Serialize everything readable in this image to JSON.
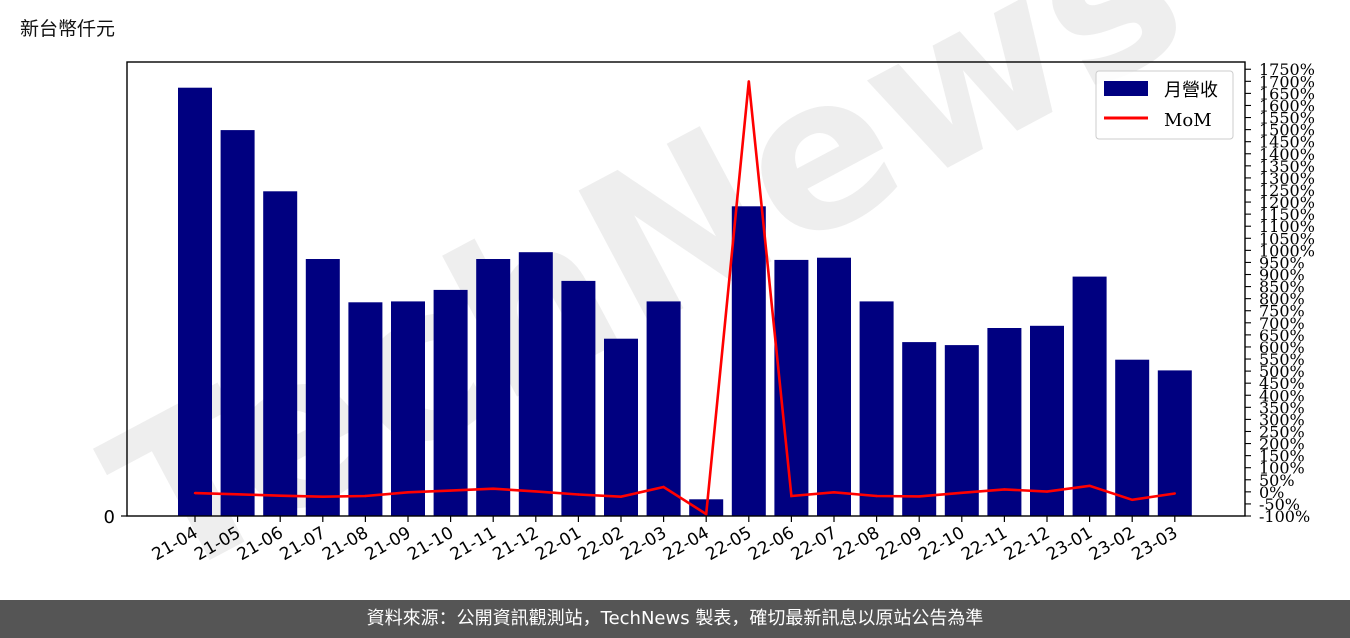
{
  "unit_label": "新台幣仟元",
  "footer_text": "資料來源：公開資訊觀測站，TechNews 製表，確切最新訊息以原站公告為準",
  "watermark_text": "TechNews",
  "chart_data": {
    "type": "bar",
    "categories": [
      "21-04",
      "21-05",
      "21-06",
      "21-07",
      "21-08",
      "21-09",
      "21-10",
      "21-11",
      "21-12",
      "22-01",
      "22-02",
      "22-03",
      "22-04",
      "22-05",
      "22-06",
      "22-07",
      "22-08",
      "22-09",
      "22-10",
      "22-11",
      "22-12",
      "23-01",
      "23-02",
      "23-03"
    ],
    "series": [
      {
        "name": "月營收",
        "kind": "bar",
        "axis": "left",
        "color": "#000080",
        "values": [
          100,
          90.1,
          75.8,
          60.0,
          49.9,
          50.1,
          52.8,
          60.0,
          61.6,
          54.9,
          41.4,
          50.1,
          3.9,
          72.3,
          59.8,
          60.3,
          50.1,
          40.6,
          39.9,
          43.9,
          44.4,
          55.9,
          36.5,
          34.0
        ]
      },
      {
        "name": "MoM",
        "kind": "line",
        "axis": "right",
        "color": "#ff0000",
        "values": [
          -5,
          -10,
          -16,
          -20,
          -17,
          -2,
          5,
          13,
          2,
          -11,
          -20,
          20,
          -92,
          1700,
          -17,
          -2,
          -17,
          -19,
          -4,
          10,
          1,
          25,
          -33,
          -7
        ]
      }
    ],
    "left_axis": {
      "ticks": [
        0
      ],
      "tick_labels": [
        "0"
      ],
      "range": [
        0,
        106
      ]
    },
    "right_axis": {
      "range": [
        -100,
        1780
      ],
      "ticks": [
        -100,
        -50,
        0,
        50,
        100,
        150,
        200,
        250,
        300,
        350,
        400,
        450,
        500,
        550,
        600,
        650,
        700,
        750,
        800,
        850,
        900,
        950,
        1000,
        1050,
        1100,
        1150,
        1200,
        1250,
        1300,
        1350,
        1400,
        1450,
        1500,
        1550,
        1600,
        1650,
        1700,
        1750
      ],
      "tick_suffix": "%"
    },
    "legend": {
      "placement": "top-right",
      "entries": [
        "月營收",
        "MoM"
      ]
    },
    "grid": false
  }
}
